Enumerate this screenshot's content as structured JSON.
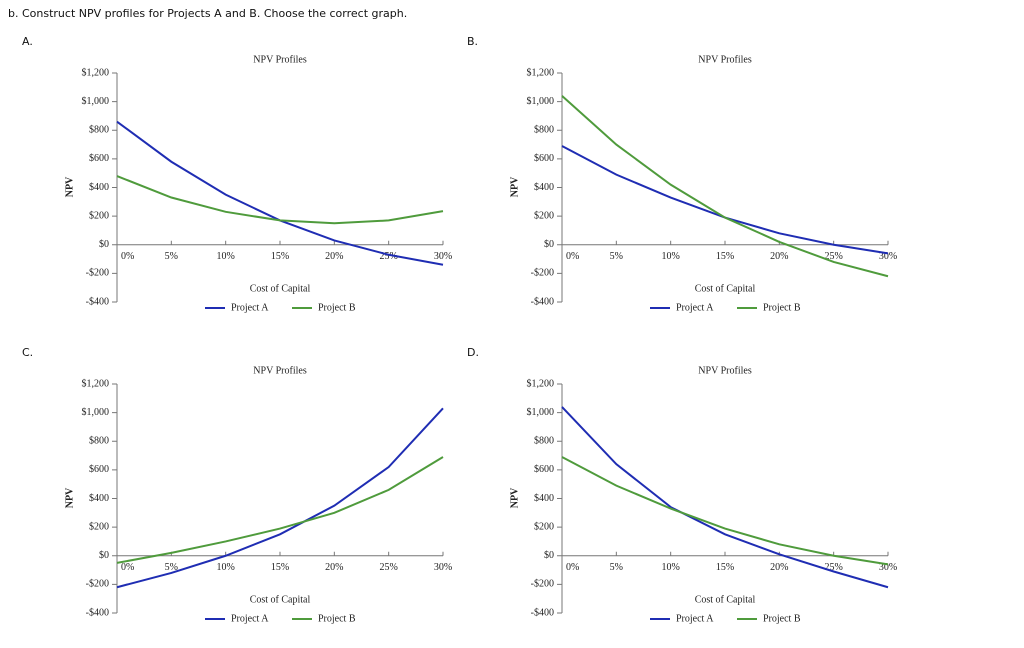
{
  "question": "b. Construct NPV profiles for Projects A and B. Choose the correct graph.",
  "chart_data": [
    {
      "type": "line",
      "label": "A.",
      "title": "NPV Profiles",
      "xlabel": "Cost of Capital",
      "ylabel": "NPV",
      "x": [
        0,
        5,
        10,
        15,
        20,
        25,
        30
      ],
      "series": [
        {
          "name": "Project A",
          "color": "#1f2db3",
          "values": [
            860,
            580,
            350,
            170,
            30,
            -70,
            -140
          ]
        },
        {
          "name": "Project B",
          "color": "#4f9b3c",
          "values": [
            480,
            330,
            230,
            170,
            150,
            170,
            235
          ]
        }
      ],
      "xlim": [
        0,
        30
      ],
      "xticks": [
        {
          "value": 0,
          "label": "0%"
        },
        {
          "value": 5,
          "label": "5%"
        },
        {
          "value": 10,
          "label": "10%"
        },
        {
          "value": 15,
          "label": "15%"
        },
        {
          "value": 20,
          "label": "20%"
        },
        {
          "value": 25,
          "label": "25%"
        },
        {
          "value": 30,
          "label": "30%"
        }
      ],
      "ylim": [
        -400,
        1200
      ],
      "yticks": [
        {
          "value": -400,
          "label": "-$400"
        },
        {
          "value": -200,
          "label": "-$200"
        },
        {
          "value": 0,
          "label": "$0"
        },
        {
          "value": 200,
          "label": "$200"
        },
        {
          "value": 400,
          "label": "$400"
        },
        {
          "value": 600,
          "label": "$600"
        },
        {
          "value": 800,
          "label": "$800"
        },
        {
          "value": 1000,
          "label": "$1,000"
        },
        {
          "value": 1200,
          "label": "$1,200"
        }
      ]
    },
    {
      "type": "line",
      "label": "B.",
      "title": "NPV Profiles",
      "xlabel": "Cost of Capital",
      "ylabel": "NPV",
      "x": [
        0,
        5,
        10,
        15,
        20,
        25,
        30
      ],
      "series": [
        {
          "name": "Project A",
          "color": "#1f2db3",
          "values": [
            690,
            490,
            330,
            190,
            80,
            0,
            -60
          ]
        },
        {
          "name": "Project B",
          "color": "#4f9b3c",
          "values": [
            1040,
            700,
            420,
            190,
            20,
            -120,
            -220
          ]
        }
      ],
      "xlim": [
        0,
        30
      ],
      "xticks": [
        {
          "value": 0,
          "label": "0%"
        },
        {
          "value": 5,
          "label": "5%"
        },
        {
          "value": 10,
          "label": "10%"
        },
        {
          "value": 15,
          "label": "15%"
        },
        {
          "value": 20,
          "label": "20%"
        },
        {
          "value": 25,
          "label": "25%"
        },
        {
          "value": 30,
          "label": "30%"
        }
      ],
      "ylim": [
        -400,
        1200
      ],
      "yticks": [
        {
          "value": -400,
          "label": "-$400"
        },
        {
          "value": -200,
          "label": "-$200"
        },
        {
          "value": 0,
          "label": "$0"
        },
        {
          "value": 200,
          "label": "$200"
        },
        {
          "value": 400,
          "label": "$400"
        },
        {
          "value": 600,
          "label": "$600"
        },
        {
          "value": 800,
          "label": "$800"
        },
        {
          "value": 1000,
          "label": "$1,000"
        },
        {
          "value": 1200,
          "label": "$1,200"
        }
      ]
    },
    {
      "type": "line",
      "label": "C.",
      "title": "NPV Profiles",
      "xlabel": "Cost of Capital",
      "ylabel": "NPV",
      "x": [
        0,
        5,
        10,
        15,
        20,
        25,
        30
      ],
      "series": [
        {
          "name": "Project A",
          "color": "#1f2db3",
          "values": [
            -220,
            -120,
            0,
            150,
            350,
            620,
            1030
          ]
        },
        {
          "name": "Project B",
          "color": "#4f9b3c",
          "values": [
            -50,
            20,
            100,
            190,
            300,
            460,
            690
          ]
        }
      ],
      "xlim": [
        0,
        30
      ],
      "xticks": [
        {
          "value": 0,
          "label": "0%"
        },
        {
          "value": 5,
          "label": "5%"
        },
        {
          "value": 10,
          "label": "10%"
        },
        {
          "value": 15,
          "label": "15%"
        },
        {
          "value": 20,
          "label": "20%"
        },
        {
          "value": 25,
          "label": "25%"
        },
        {
          "value": 30,
          "label": "30%"
        }
      ],
      "ylim": [
        -400,
        1200
      ],
      "yticks": [
        {
          "value": -400,
          "label": "-$400"
        },
        {
          "value": -200,
          "label": "-$200"
        },
        {
          "value": 0,
          "label": "$0"
        },
        {
          "value": 200,
          "label": "$200"
        },
        {
          "value": 400,
          "label": "$400"
        },
        {
          "value": 600,
          "label": "$600"
        },
        {
          "value": 800,
          "label": "$800"
        },
        {
          "value": 1000,
          "label": "$1,000"
        },
        {
          "value": 1200,
          "label": "$1,200"
        }
      ]
    },
    {
      "type": "line",
      "label": "D.",
      "title": "NPV Profiles",
      "xlabel": "Cost of Capital",
      "ylabel": "NPV",
      "x": [
        0,
        5,
        10,
        15,
        20,
        25,
        30
      ],
      "series": [
        {
          "name": "Project A",
          "color": "#1f2db3",
          "values": [
            1040,
            640,
            340,
            150,
            10,
            -110,
            -220
          ]
        },
        {
          "name": "Project B",
          "color": "#4f9b3c",
          "values": [
            690,
            490,
            330,
            190,
            80,
            0,
            -60
          ]
        }
      ],
      "xlim": [
        0,
        30
      ],
      "xticks": [
        {
          "value": 0,
          "label": "0%"
        },
        {
          "value": 5,
          "label": "5%"
        },
        {
          "value": 10,
          "label": "10%"
        },
        {
          "value": 15,
          "label": "15%"
        },
        {
          "value": 20,
          "label": "20%"
        },
        {
          "value": 25,
          "label": "25%"
        },
        {
          "value": 30,
          "label": "30%"
        }
      ],
      "ylim": [
        -400,
        1200
      ],
      "yticks": [
        {
          "value": -400,
          "label": "-$400"
        },
        {
          "value": -200,
          "label": "-$200"
        },
        {
          "value": 0,
          "label": "$0"
        },
        {
          "value": 200,
          "label": "$200"
        },
        {
          "value": 400,
          "label": "$400"
        },
        {
          "value": 600,
          "label": "$600"
        },
        {
          "value": 800,
          "label": "$800"
        },
        {
          "value": 1000,
          "label": "$1,000"
        },
        {
          "value": 1200,
          "label": "$1,200"
        }
      ]
    }
  ]
}
